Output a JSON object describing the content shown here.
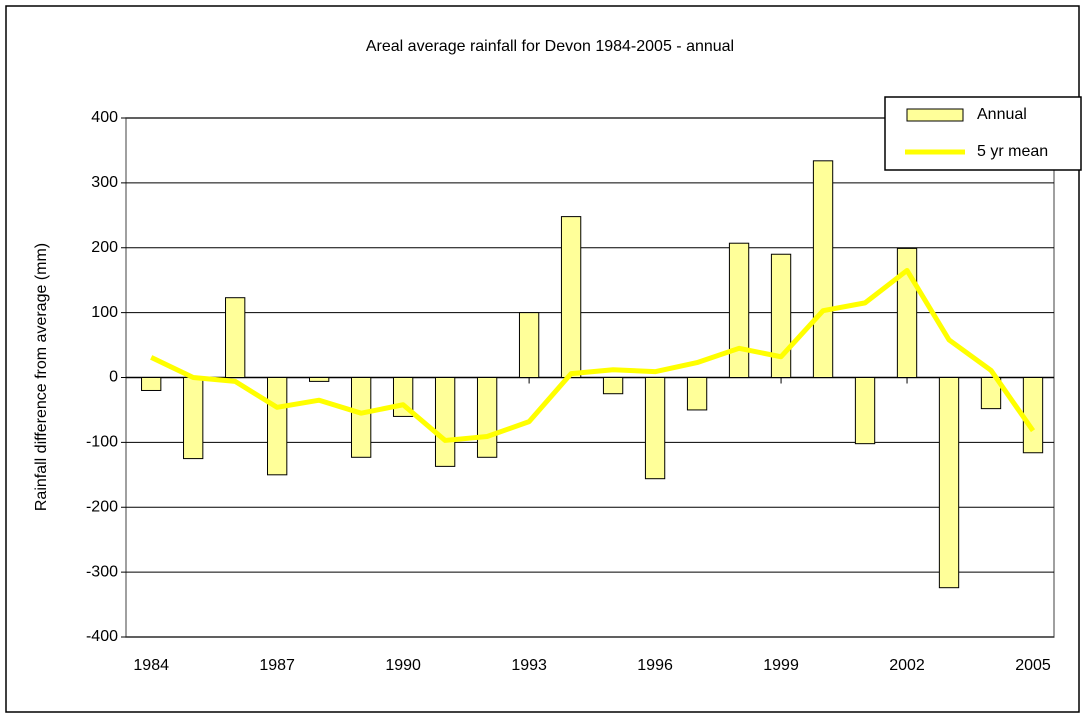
{
  "chart_data": {
    "type": "bar",
    "title": "Areal average rainfall for Devon 1984-2005 - annual",
    "y_label": "Rainfall difference from average (mm)",
    "x": [
      1984,
      1985,
      1986,
      1987,
      1988,
      1989,
      1990,
      1991,
      1992,
      1993,
      1994,
      1995,
      1996,
      1997,
      1998,
      1999,
      2000,
      2001,
      2002,
      2003,
      2004,
      2005
    ],
    "series": [
      {
        "name": "Annual",
        "type": "bar",
        "color": "#ffff99",
        "values": [
          -20,
          -125,
          123,
          -150,
          -6,
          -123,
          -60,
          -137,
          -123,
          100,
          248,
          -25,
          -156,
          -50,
          207,
          190,
          334,
          -102,
          199,
          -324,
          -48,
          -116
        ]
      },
      {
        "name": "5 yr mean",
        "type": "line",
        "color": "#ffff00",
        "values": [
          31,
          0,
          -6,
          -46,
          -35,
          -55,
          -42,
          -97,
          -91,
          -68,
          6,
          12,
          9,
          23,
          45,
          32,
          103,
          115,
          165,
          58,
          11,
          -82
        ]
      }
    ],
    "xlim": [
      1983.4,
      2005.5
    ],
    "xticks": [
      1984,
      1987,
      1990,
      1993,
      1996,
      1999,
      2002,
      2005
    ],
    "ylim": [
      -400,
      400
    ],
    "yticks": [
      -400,
      -300,
      -200,
      -100,
      0,
      100,
      200,
      300,
      400
    ],
    "grid": true,
    "legend": "top-right"
  }
}
